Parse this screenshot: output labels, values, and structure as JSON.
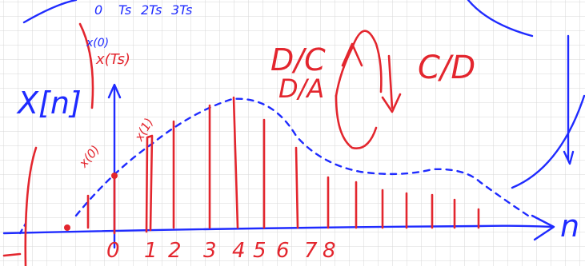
{
  "labels": {
    "x_n": "X[n]",
    "dc": "D/C",
    "da": "D/A",
    "cd": "C/D",
    "n": "n",
    "x0_top": "x(0)",
    "xts_top": "x(Ts)",
    "x0": "x(0)",
    "x1": "x(1)"
  },
  "top_axis": [
    "0",
    "Ts",
    "2Ts",
    "3Ts"
  ],
  "axis_digits": [
    "0",
    "1",
    "2",
    "3",
    "4",
    "5",
    "6",
    "7",
    "8"
  ]
}
